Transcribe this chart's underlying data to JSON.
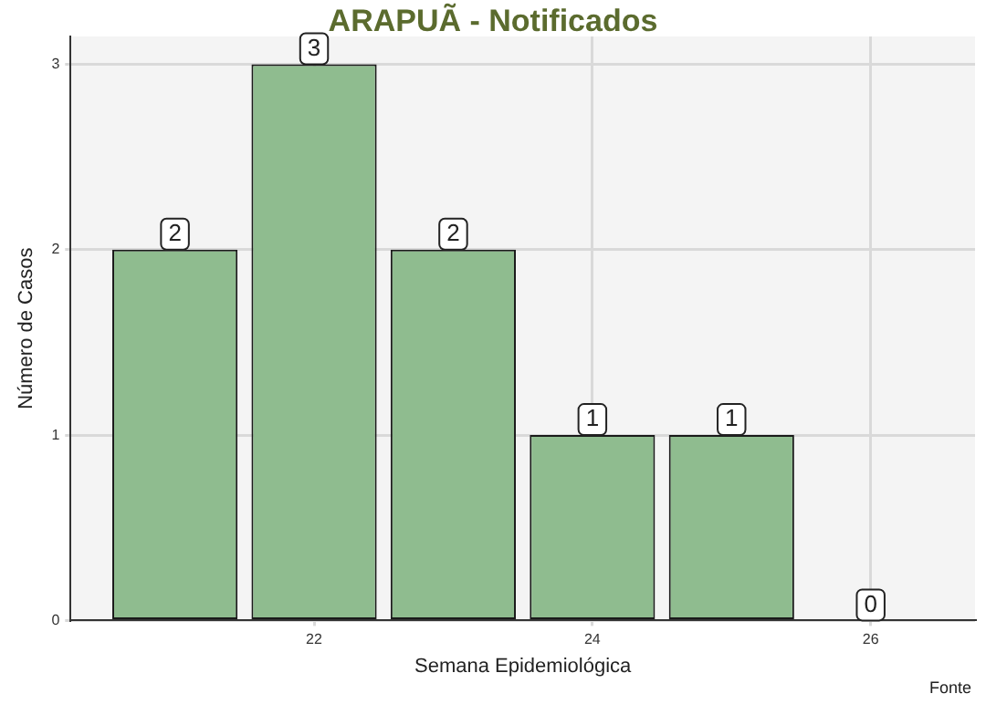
{
  "chart_data": {
    "type": "bar",
    "title": "ARAPUÃ - Notificados",
    "xlabel": "Semana Epidemiológica",
    "ylabel": "Número de Casos",
    "x": [
      21,
      22,
      23,
      24,
      25,
      26
    ],
    "values": [
      2,
      3,
      2,
      1,
      1,
      0
    ],
    "color": "#8fbc8f",
    "xlim": [
      20.25,
      26.75
    ],
    "xticks": [
      22,
      24,
      26
    ],
    "ylim": [
      0,
      3.15
    ],
    "yticks": [
      0,
      1,
      2,
      3
    ],
    "grid": true,
    "legend": false,
    "data_labels": true,
    "annotations": [
      "Fonte"
    ]
  }
}
